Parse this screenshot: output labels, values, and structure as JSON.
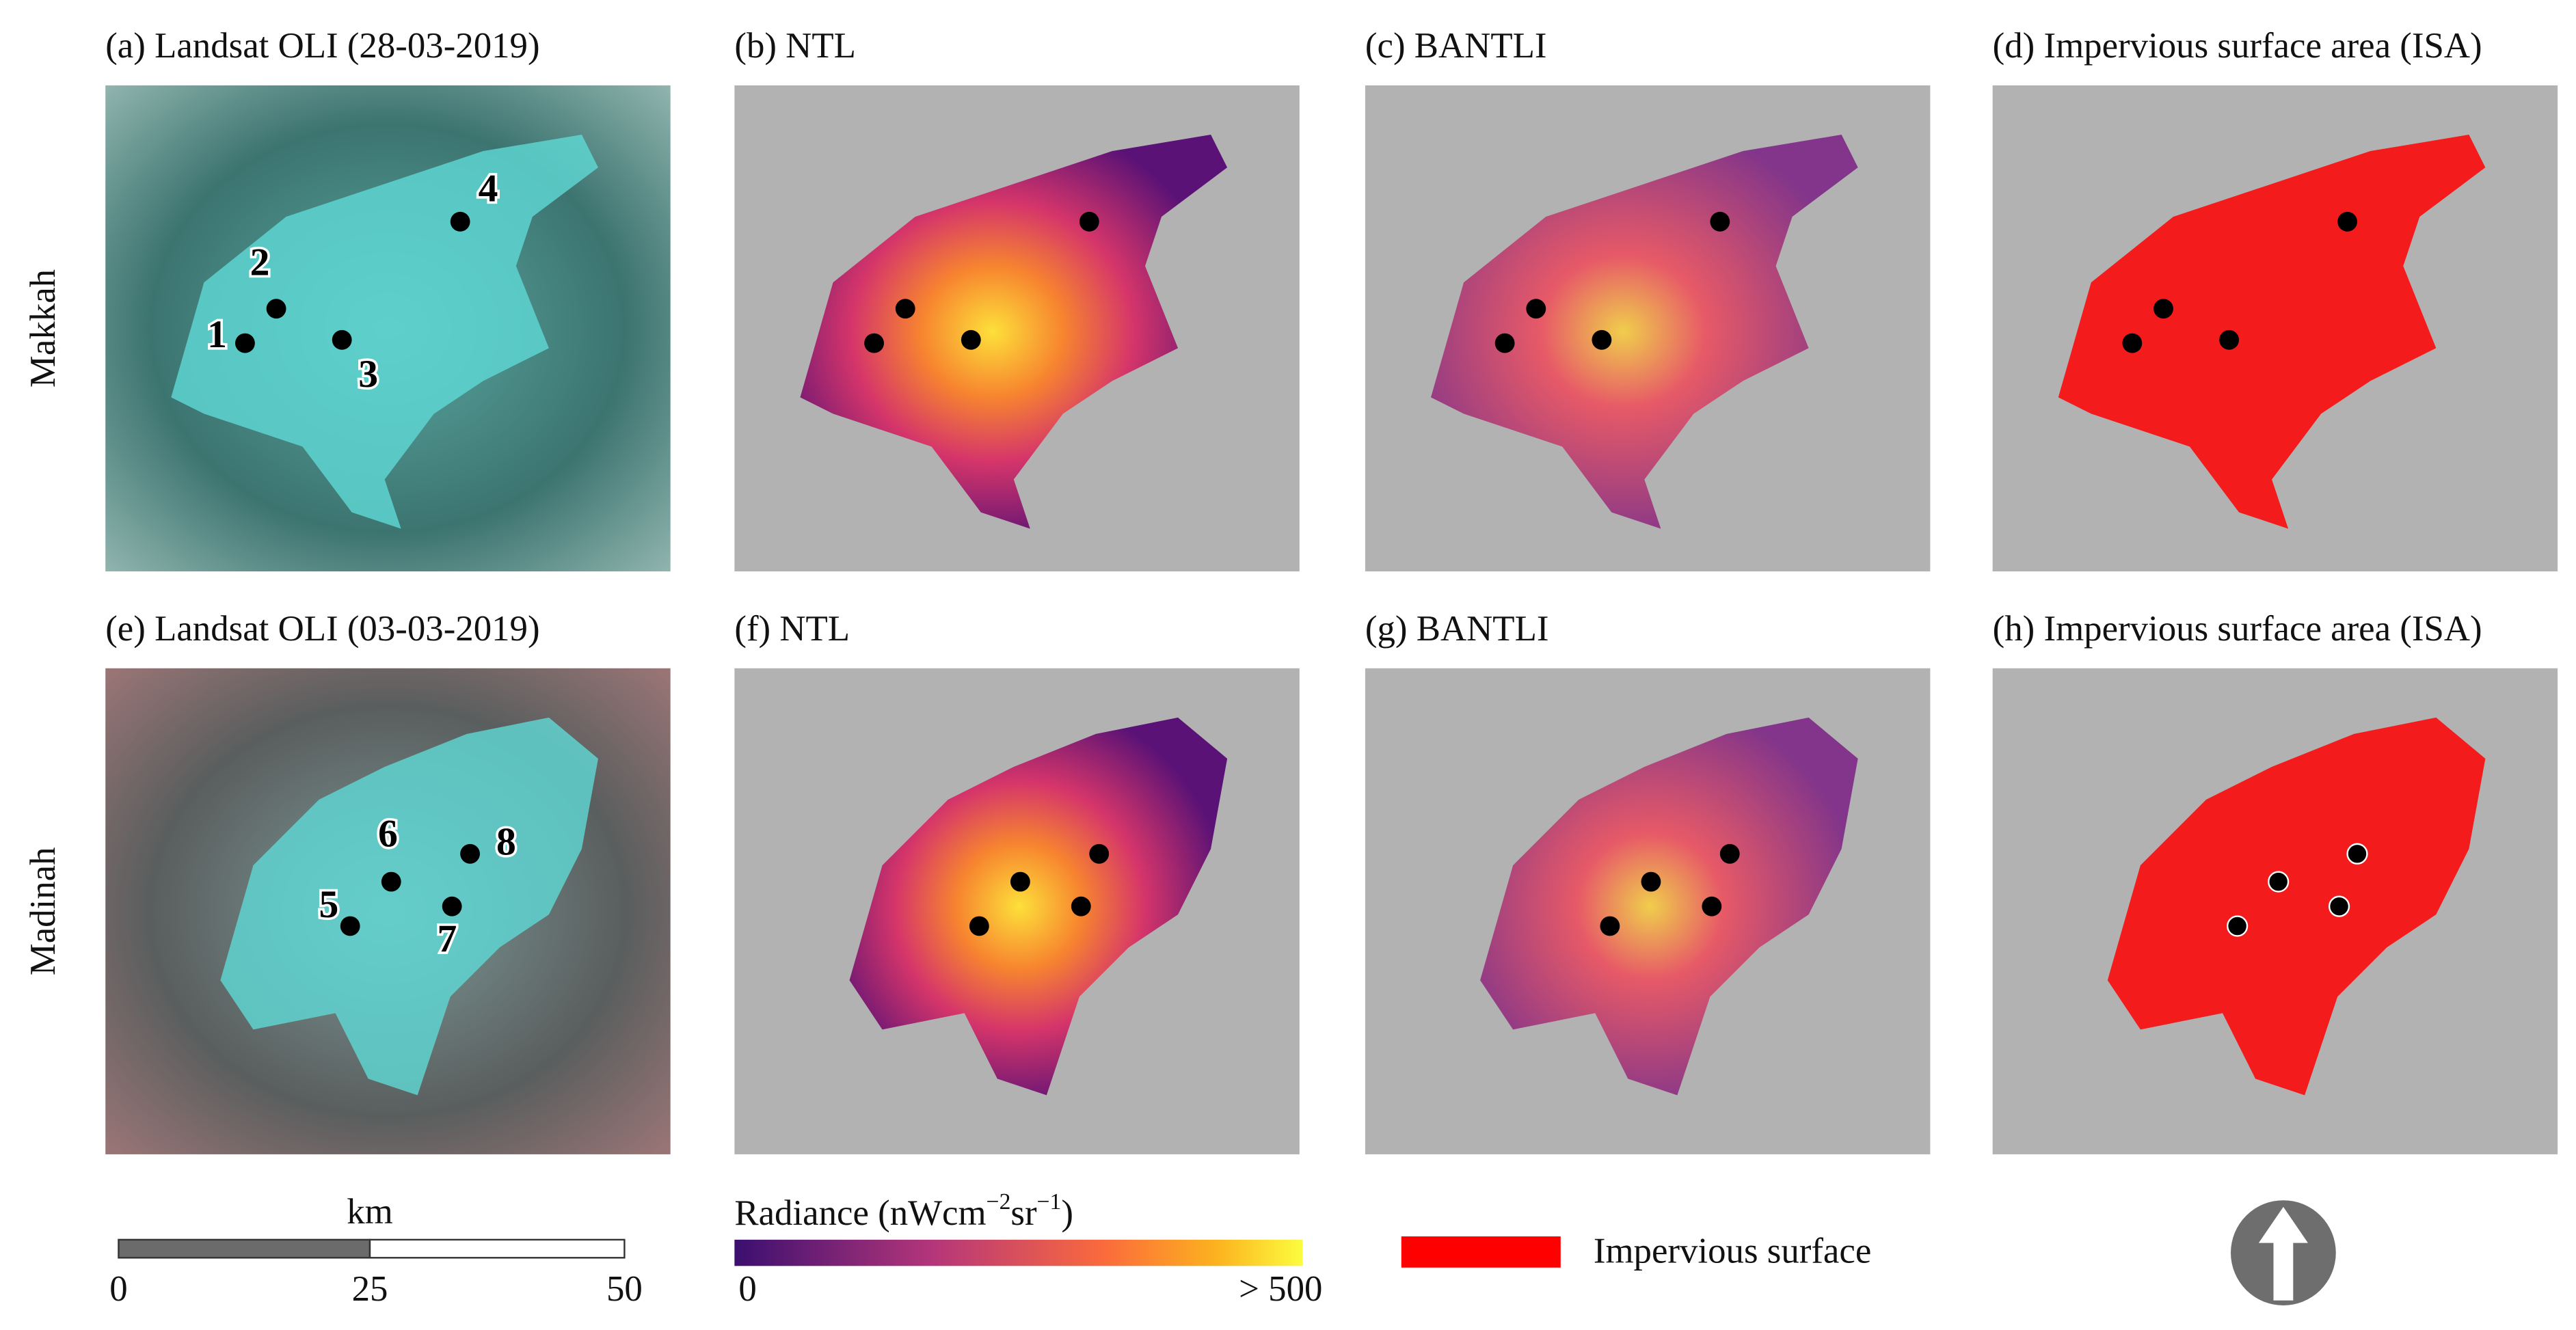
{
  "rows": [
    {
      "name": "Makkah",
      "panels": [
        "(a) Landsat OLI (28-03-2019)",
        "(b) NTL",
        "(c) BANTLI",
        "(d) Impervious surface area (ISA)"
      ],
      "points": [
        "1",
        "2",
        "3",
        "4"
      ]
    },
    {
      "name": "Madinah",
      "panels": [
        "(e) Landsat OLI (03-03-2019)",
        "(f) NTL",
        "(g) BANTLI",
        "(h) Impervious surface area (ISA)"
      ],
      "points": [
        "5",
        "6",
        "7",
        "8"
      ]
    }
  ],
  "scale_bar": {
    "unit": "km",
    "labels": [
      "0",
      "25",
      "50"
    ]
  },
  "colorbar": {
    "title": {
      "prefix": "Radiance (nWcm",
      "exp1": "−2",
      "mid": "sr",
      "exp2": "−1",
      "suffix": ")"
    },
    "min_label": "0",
    "max_label": "> 500"
  },
  "legend": {
    "label": "Impervious surface"
  }
}
